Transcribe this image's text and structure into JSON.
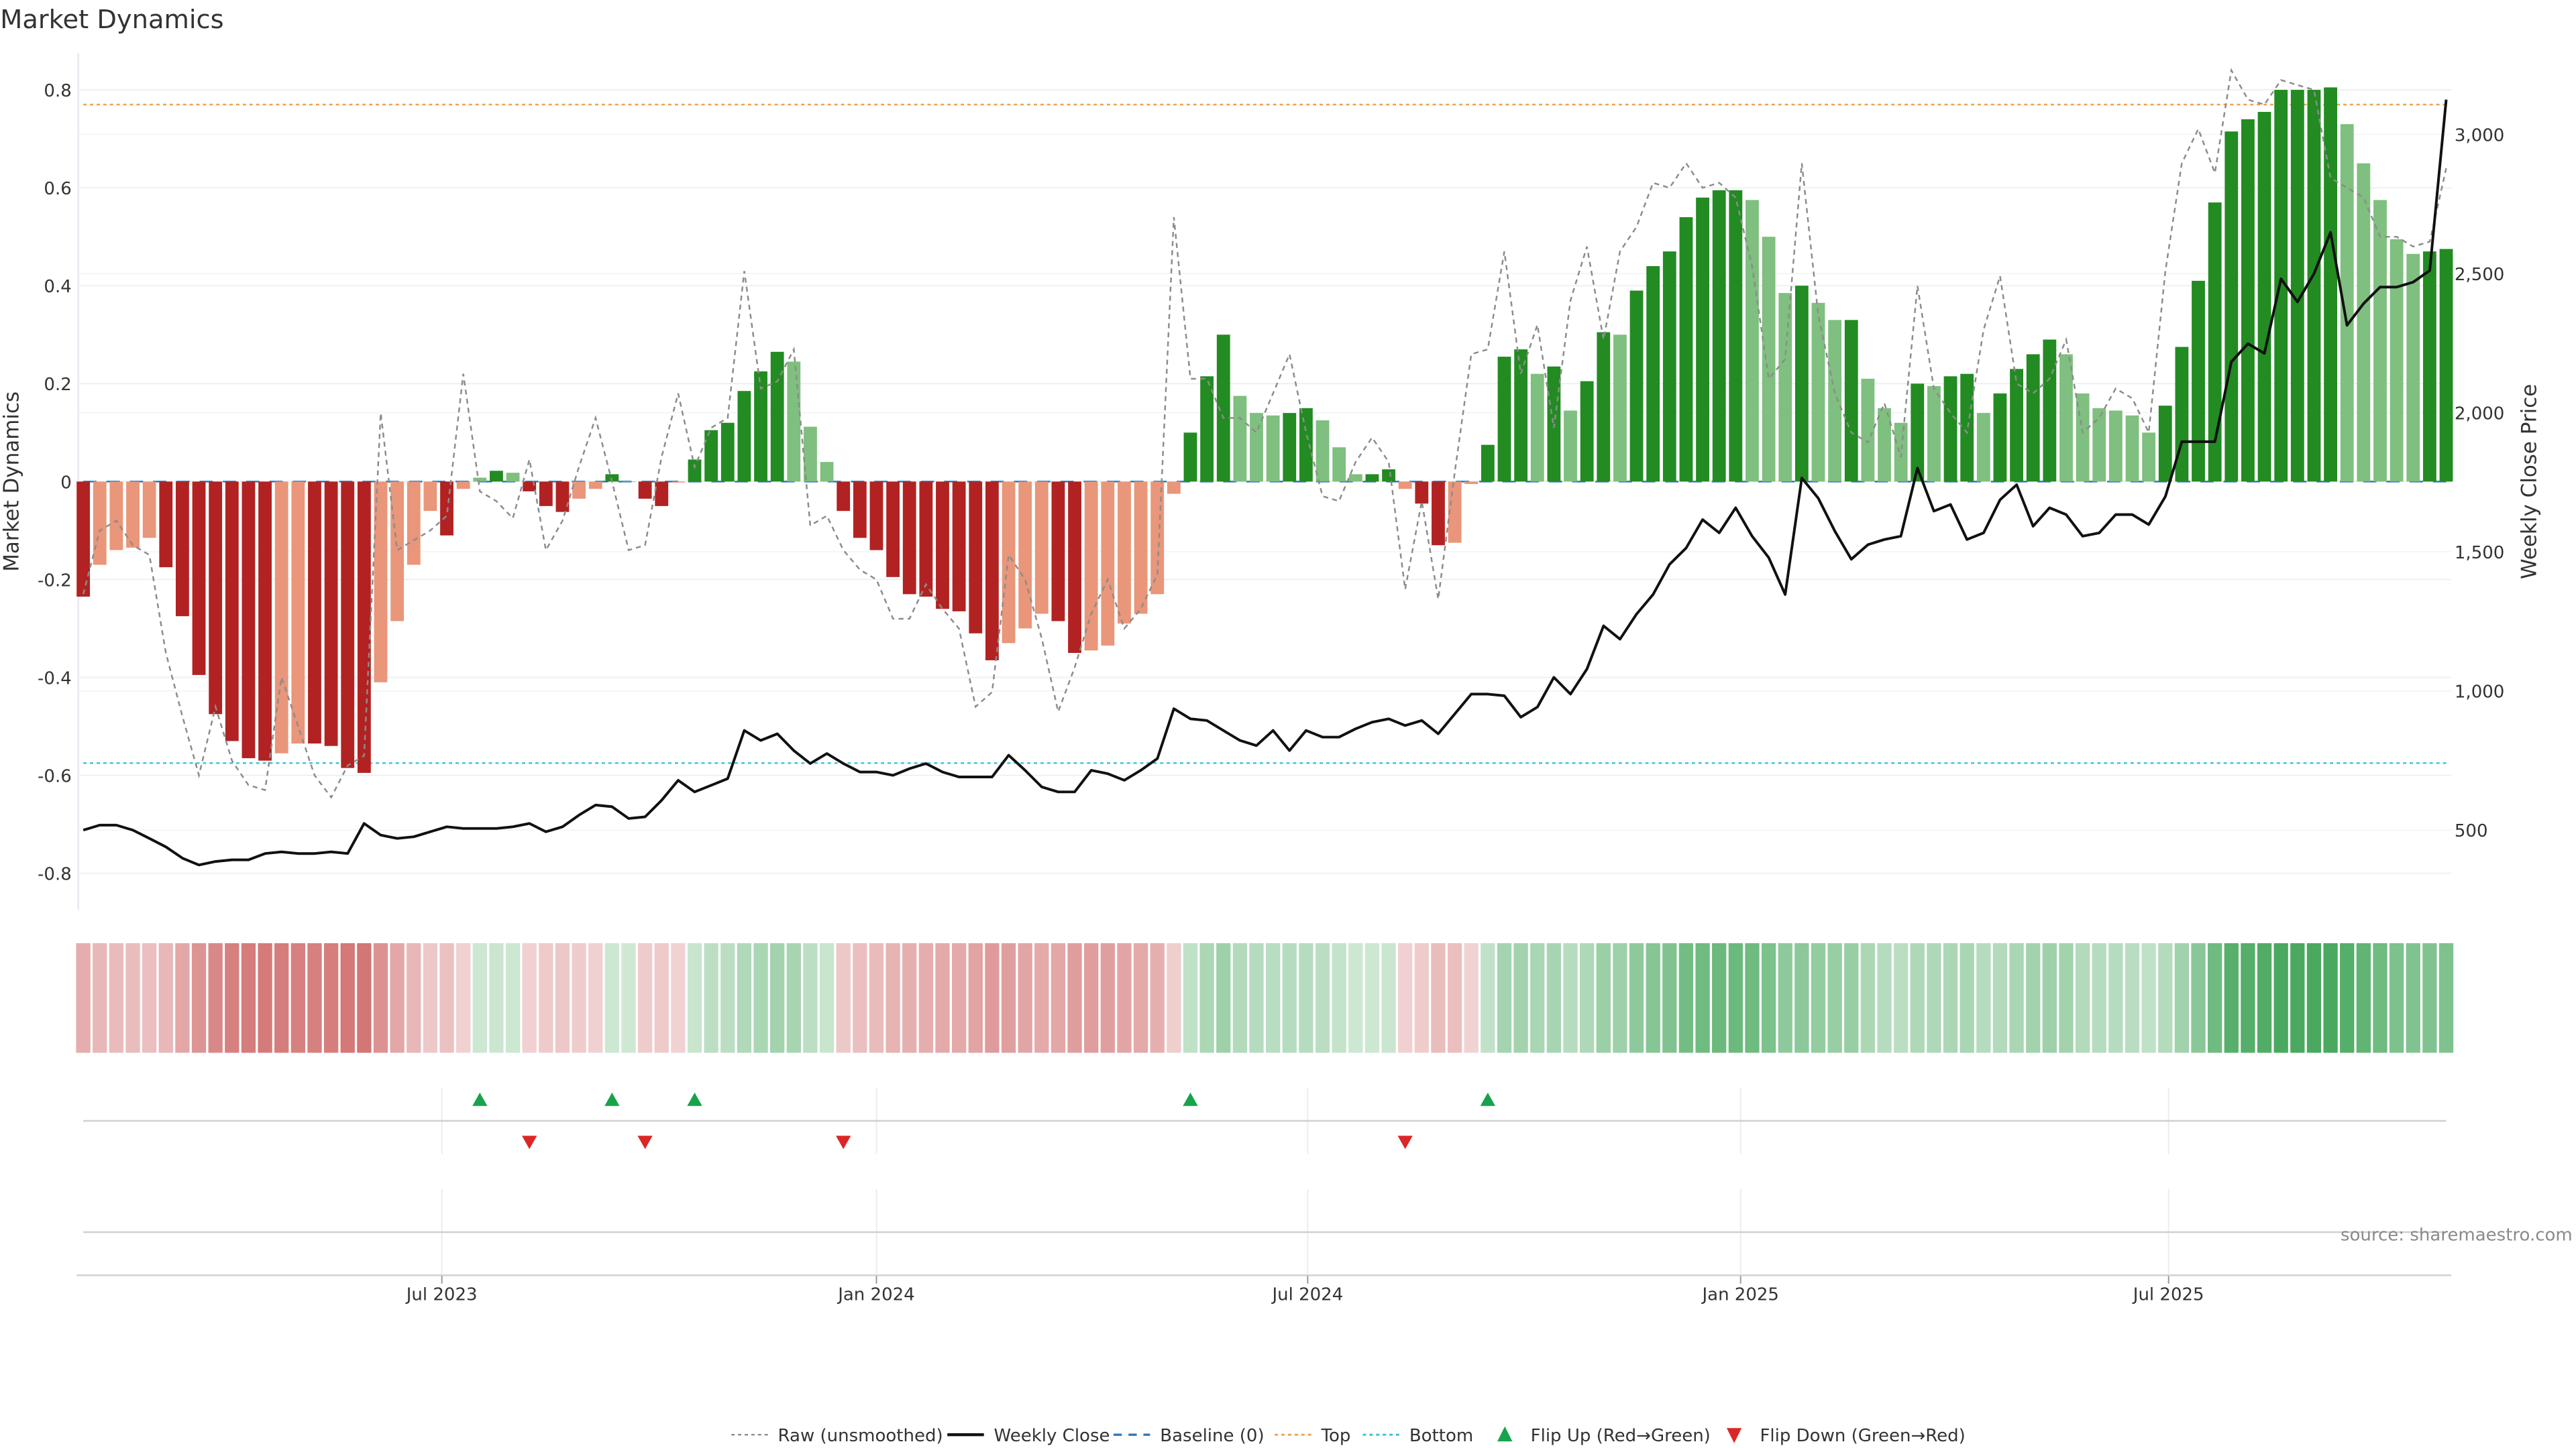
{
  "chart_data": {
    "type": "bar",
    "title": "Market Dynamics",
    "ylabel": "Market Dynamics",
    "y2label": "Weekly Close Price",
    "ylim": [
      -0.875,
      0.875
    ],
    "y2lim": [
      213,
      3292
    ],
    "yticks": [
      "-0.8",
      "-0.6",
      "-0.4",
      "-0.2",
      "0",
      "0.2",
      "0.4",
      "0.6",
      "0.8"
    ],
    "ytick_values": [
      -0.8,
      -0.6,
      -0.4,
      -0.2,
      0,
      0.2,
      0.4,
      0.6,
      0.8
    ],
    "y2ticks": [
      "500",
      "1,000",
      "1,500",
      "2,000",
      "2,500",
      "3,000"
    ],
    "y2tick_values": [
      500,
      1000,
      1500,
      2000,
      2500,
      3000
    ],
    "xticks": [
      {
        "label": "Jul 2023",
        "week": 21.7
      },
      {
        "label": "Jan 2024",
        "week": 48.0
      },
      {
        "label": "Jul 2024",
        "week": 74.1
      },
      {
        "label": "Jan 2025",
        "week": 100.3
      },
      {
        "label": "Jul 2025",
        "week": 126.2
      }
    ],
    "grid": true,
    "top_level": 0.77,
    "bottom_level": -0.575,
    "baseline": 0,
    "market_dynamics": [
      -0.235,
      -0.17,
      -0.14,
      -0.135,
      -0.115,
      -0.175,
      -0.275,
      -0.395,
      -0.475,
      -0.53,
      -0.565,
      -0.57,
      -0.555,
      -0.535,
      -0.535,
      -0.54,
      -0.585,
      -0.595,
      -0.41,
      -0.285,
      -0.17,
      -0.06,
      -0.11,
      -0.015,
      0.008,
      0.022,
      0.018,
      -0.02,
      -0.05,
      -0.062,
      -0.035,
      -0.015,
      0.015,
      0.0,
      -0.035,
      -0.05,
      -0.002,
      0.045,
      0.105,
      0.12,
      0.185,
      0.225,
      0.265,
      0.245,
      0.112,
      0.04,
      -0.06,
      -0.115,
      -0.14,
      -0.195,
      -0.23,
      -0.235,
      -0.26,
      -0.265,
      -0.31,
      -0.365,
      -0.33,
      -0.3,
      -0.27,
      -0.285,
      -0.35,
      -0.345,
      -0.335,
      -0.29,
      -0.27,
      -0.23,
      -0.025,
      0.1,
      0.215,
      0.3,
      0.175,
      0.14,
      0.135,
      0.14,
      0.15,
      0.125,
      0.07,
      0.015,
      0.015,
      0.025,
      -0.015,
      -0.045,
      -0.13,
      -0.125,
      -0.005,
      0.075,
      0.255,
      0.27,
      0.22,
      0.235,
      0.145,
      0.205,
      0.305,
      0.3,
      0.39,
      0.44,
      0.47,
      0.54,
      0.58,
      0.595,
      0.595,
      0.575,
      0.5,
      0.385,
      0.4,
      0.365,
      0.33,
      0.33,
      0.21,
      0.15,
      0.12,
      0.2,
      0.195,
      0.215,
      0.22,
      0.14,
      0.18,
      0.23,
      0.26,
      0.29,
      0.26,
      0.18,
      0.15,
      0.145,
      0.135,
      0.1,
      0.155,
      0.275,
      0.41,
      0.57,
      0.715,
      0.74,
      0.755,
      0.8,
      0.8,
      0.8,
      0.805,
      0.73,
      0.65,
      0.575,
      0.495,
      0.465,
      0.47,
      0.475
    ],
    "raw_unsmoothed": [
      -0.23,
      -0.1,
      -0.08,
      -0.13,
      -0.15,
      -0.35,
      -0.48,
      -0.6,
      -0.46,
      -0.57,
      -0.62,
      -0.63,
      -0.4,
      -0.5,
      -0.6,
      -0.645,
      -0.58,
      -0.56,
      0.14,
      -0.14,
      -0.12,
      -0.1,
      -0.07,
      0.22,
      -0.02,
      -0.04,
      -0.075,
      0.045,
      -0.14,
      -0.08,
      0.03,
      0.13,
      0.0,
      -0.14,
      -0.13,
      0.05,
      0.18,
      0.03,
      0.11,
      0.13,
      0.43,
      0.19,
      0.205,
      0.27,
      -0.09,
      -0.07,
      -0.14,
      -0.18,
      -0.2,
      -0.28,
      -0.28,
      -0.21,
      -0.26,
      -0.3,
      -0.46,
      -0.43,
      -0.15,
      -0.2,
      -0.32,
      -0.47,
      -0.38,
      -0.27,
      -0.2,
      -0.3,
      -0.26,
      -0.19,
      0.54,
      0.21,
      0.21,
      0.13,
      0.13,
      0.1,
      0.18,
      0.26,
      0.1,
      -0.03,
      -0.04,
      0.04,
      0.09,
      0.04,
      -0.22,
      -0.04,
      -0.24,
      0.02,
      0.26,
      0.27,
      0.47,
      0.22,
      0.32,
      0.11,
      0.37,
      0.48,
      0.29,
      0.47,
      0.52,
      0.61,
      0.6,
      0.65,
      0.6,
      0.61,
      0.58,
      0.44,
      0.21,
      0.25,
      0.65,
      0.34,
      0.18,
      0.1,
      0.08,
      0.16,
      0.05,
      0.4,
      0.19,
      0.14,
      0.1,
      0.31,
      0.42,
      0.2,
      0.18,
      0.21,
      0.29,
      0.1,
      0.13,
      0.19,
      0.17,
      0.1,
      0.43,
      0.65,
      0.72,
      0.63,
      0.84,
      0.78,
      0.77,
      0.82,
      0.81,
      0.8,
      0.62,
      0.6,
      0.58,
      0.5,
      0.5,
      0.48,
      0.49,
      0.64
    ],
    "weekly_close": [
      500,
      518,
      518,
      500,
      470,
      440,
      399,
      375,
      387,
      393,
      393,
      416,
      422,
      416,
      416,
      422,
      416,
      524,
      482,
      470,
      476,
      494,
      512,
      506,
      506,
      506,
      512,
      524,
      494,
      512,
      554,
      590,
      584,
      542,
      548,
      607,
      679,
      637,
      661,
      685,
      858,
      822,
      846,
      786,
      739,
      775,
      739,
      709,
      709,
      697,
      721,
      739,
      709,
      691,
      691,
      691,
      769,
      715,
      655,
      637,
      637,
      715,
      703,
      679,
      715,
      757,
      936,
      900,
      894,
      858,
      822,
      804,
      858,
      786,
      858,
      834,
      834,
      864,
      888,
      900,
      876,
      894,
      846,
      918,
      989,
      989,
      983,
      906,
      942,
      1049,
      989,
      1079,
      1234,
      1186,
      1276,
      1347,
      1455,
      1514,
      1616,
      1568,
      1658,
      1556,
      1479,
      1347,
      1765,
      1693,
      1574,
      1473,
      1526,
      1544,
      1556,
      1801,
      1646,
      1670,
      1544,
      1568,
      1687,
      1741,
      1592,
      1658,
      1634,
      1556,
      1568,
      1634,
      1634,
      1598,
      1699,
      1896,
      1896,
      1896,
      2183,
      2248,
      2213,
      2481,
      2398,
      2499,
      2648,
      2314,
      2392,
      2451,
      2451,
      2469,
      2511,
      3125
    ],
    "flip_up_weeks": [
      24,
      32,
      37,
      67,
      85
    ],
    "flip_down_weeks": [
      27,
      34,
      46,
      80
    ],
    "legend": {
      "placement": "bottom-center",
      "items": [
        "Raw (unsmoothed)",
        "Weekly Close",
        "Baseline (0)",
        "Top",
        "Bottom",
        "Flip Up (Red→Green)",
        "Flip Down (Green→Red)"
      ]
    },
    "source": "source: sharemaestro.com"
  },
  "colors": {
    "green_strong": "#228b22",
    "green_weak": "#7fbf7f",
    "red_strong": "#b22222",
    "red_weak": "#e9967a",
    "raw": "#8c8c8c",
    "close": "#111111",
    "baseline": "#2e78b7",
    "top": "#f0a050",
    "bottom": "#35c4d4",
    "flip_up": "#16a34a",
    "flip_down": "#dc2626"
  }
}
